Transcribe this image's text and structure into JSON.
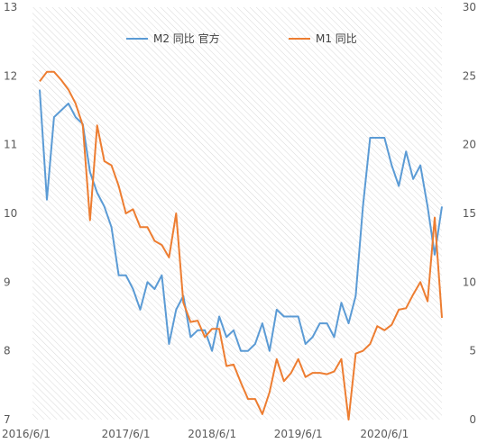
{
  "chart_data": {
    "type": "line",
    "x": [
      "2016/6",
      "2016/7",
      "2016/8",
      "2016/9",
      "2016/10",
      "2016/11",
      "2016/12",
      "2017/1",
      "2017/2",
      "2017/3",
      "2017/4",
      "2017/5",
      "2017/6",
      "2017/7",
      "2017/8",
      "2017/9",
      "2017/10",
      "2017/11",
      "2017/12",
      "2018/1",
      "2018/2",
      "2018/3",
      "2018/4",
      "2018/5",
      "2018/6",
      "2018/7",
      "2018/8",
      "2018/9",
      "2018/10",
      "2018/11",
      "2018/12",
      "2019/1",
      "2019/2",
      "2019/3",
      "2019/4",
      "2019/5",
      "2019/6",
      "2019/7",
      "2019/8",
      "2019/9",
      "2019/10",
      "2019/11",
      "2019/12",
      "2020/1",
      "2020/2",
      "2020/3",
      "2020/4",
      "2020/5",
      "2020/6",
      "2020/7",
      "2020/8",
      "2020/9",
      "2020/10",
      "2020/11",
      "2020/12",
      "2021/1",
      "2021/2"
    ],
    "x_ticks": [
      "2016/6/1",
      "2017/6/1",
      "2018/6/1",
      "2019/6/1",
      "2020/6/1"
    ],
    "y_left_ticks": [
      "7",
      "8",
      "9",
      "10",
      "11",
      "12",
      "13"
    ],
    "y_right_ticks": [
      "0",
      "5",
      "10",
      "15",
      "20",
      "25",
      "30"
    ],
    "ylim_left": [
      7,
      13
    ],
    "ylim_right": [
      0,
      30
    ],
    "grid": false,
    "background": "diagonal hatch",
    "legend_position": "top-center",
    "series": [
      {
        "name": "M2 同比 官方",
        "axis": "left",
        "color": "#5B9BD5",
        "values": [
          11.8,
          10.2,
          11.4,
          11.5,
          11.6,
          11.4,
          11.3,
          10.6,
          10.3,
          10.1,
          9.8,
          9.1,
          9.1,
          8.9,
          8.6,
          9.0,
          8.9,
          9.1,
          8.1,
          8.6,
          8.8,
          8.2,
          8.3,
          8.3,
          8.0,
          8.5,
          8.2,
          8.3,
          8.0,
          8.0,
          8.1,
          8.4,
          8.0,
          8.6,
          8.5,
          8.5,
          8.5,
          8.1,
          8.2,
          8.4,
          8.4,
          8.2,
          8.7,
          8.4,
          8.8,
          10.1,
          11.1,
          11.1,
          11.1,
          10.7,
          10.4,
          10.9,
          10.5,
          10.7,
          10.1,
          9.4,
          10.1
        ]
      },
      {
        "name": "M1 同比",
        "axis": "right",
        "color": "#ED7D31",
        "values": [
          24.6,
          25.3,
          25.3,
          24.7,
          24.0,
          23.0,
          21.4,
          14.5,
          21.4,
          18.8,
          18.5,
          17.0,
          15.0,
          15.3,
          14.0,
          14.0,
          13.0,
          12.7,
          11.8,
          15.0,
          8.5,
          7.1,
          7.2,
          6.0,
          6.6,
          6.6,
          3.9,
          4.0,
          2.7,
          1.5,
          1.5,
          0.4,
          2.0,
          4.4,
          2.8,
          3.4,
          4.4,
          3.1,
          3.4,
          3.4,
          3.3,
          3.5,
          4.4,
          0.0,
          4.8,
          5.0,
          5.5,
          6.8,
          6.5,
          6.9,
          8.0,
          8.1,
          9.1,
          10.0,
          8.6,
          14.7,
          7.4
        ]
      }
    ]
  }
}
